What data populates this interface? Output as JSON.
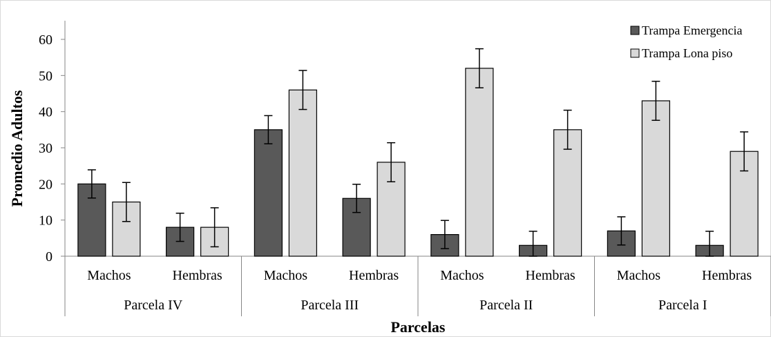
{
  "chart_data": {
    "type": "bar",
    "title": "",
    "xlabel": "Parcelas",
    "ylabel": "Promedio Adultos",
    "ylim": [
      0,
      65
    ],
    "yticks": [
      0,
      10,
      20,
      30,
      40,
      50,
      60
    ],
    "grid": false,
    "legend_position": "top-right",
    "groups": [
      "Parcela IV",
      "Parcela III",
      "Parcela II",
      "Parcela I"
    ],
    "categories": [
      "Machos",
      "Hembras",
      "Machos",
      "Hembras",
      "Machos",
      "Hembras",
      "Machos",
      "Hembras"
    ],
    "series": [
      {
        "name": "Trampa Emergencia",
        "color": "#595959",
        "values": [
          20,
          8,
          35,
          16,
          6,
          3,
          7,
          3
        ],
        "errors": [
          3.9,
          3.9,
          3.9,
          3.9,
          3.9,
          3.9,
          3.9,
          3.9
        ]
      },
      {
        "name": "Trampa Lona piso",
        "color": "#d9d9d9",
        "values": [
          15,
          8,
          46,
          26,
          52,
          35,
          43,
          29
        ],
        "errors": [
          5.4,
          5.4,
          5.4,
          5.4,
          5.4,
          5.4,
          5.4,
          5.4
        ]
      }
    ]
  }
}
